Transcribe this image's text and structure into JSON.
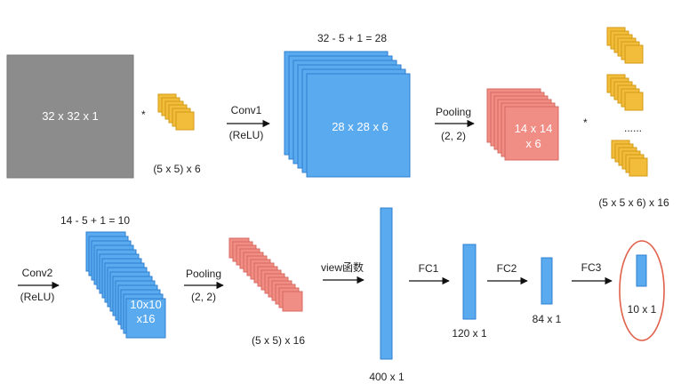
{
  "colors": {
    "input_gray": "#8c8c8c",
    "kernel_fill": "#f2bd3b",
    "kernel_stroke": "#d39a16",
    "conv_blue": "#5aaaf0",
    "conv_stroke": "#2f7fd0",
    "pool_red": "#f08d84",
    "pool_stroke": "#d8695f",
    "fc_blue": "#5aaaf0",
    "highlight_ring": "#e0604a",
    "arrow": "#111111"
  },
  "row1": {
    "input_label": "32 x 32 x 1",
    "mult_symbol_1": "*",
    "kernel1_caption": "(5 x 5) x 6",
    "conv1_name": "Conv1",
    "conv1_activation": "(ReLU)",
    "conv1_formula": "32 - 5 + 1 = 28",
    "conv1_output_label": "28 x 28 x 6",
    "pool1_name": "Pooling",
    "pool1_size": "(2, 2)",
    "pool1_output_line1": "14 x 14",
    "pool1_output_line2": "x 6",
    "mult_symbol_2": "*",
    "ellipsis": "......",
    "kernel2_caption": "(5 x 5 x 6) x 16"
  },
  "row2": {
    "conv2_name": "Conv2",
    "conv2_activation": "(ReLU)",
    "conv2_formula": "14 - 5 + 1 = 10",
    "conv2_output_line1": "10x10",
    "conv2_output_line2": "x16",
    "pool2_name": "Pooling",
    "pool2_size": "(2, 2)",
    "pool2_output_caption": "(5 x 5) x 16",
    "view_label": "view函数",
    "flatten_caption": "400 x 1",
    "fc1_name": "FC1",
    "fc1_caption": "120 x 1",
    "fc2_name": "FC2",
    "fc2_caption": "84 x 1",
    "fc3_name": "FC3",
    "fc3_caption": "10 x 1"
  }
}
